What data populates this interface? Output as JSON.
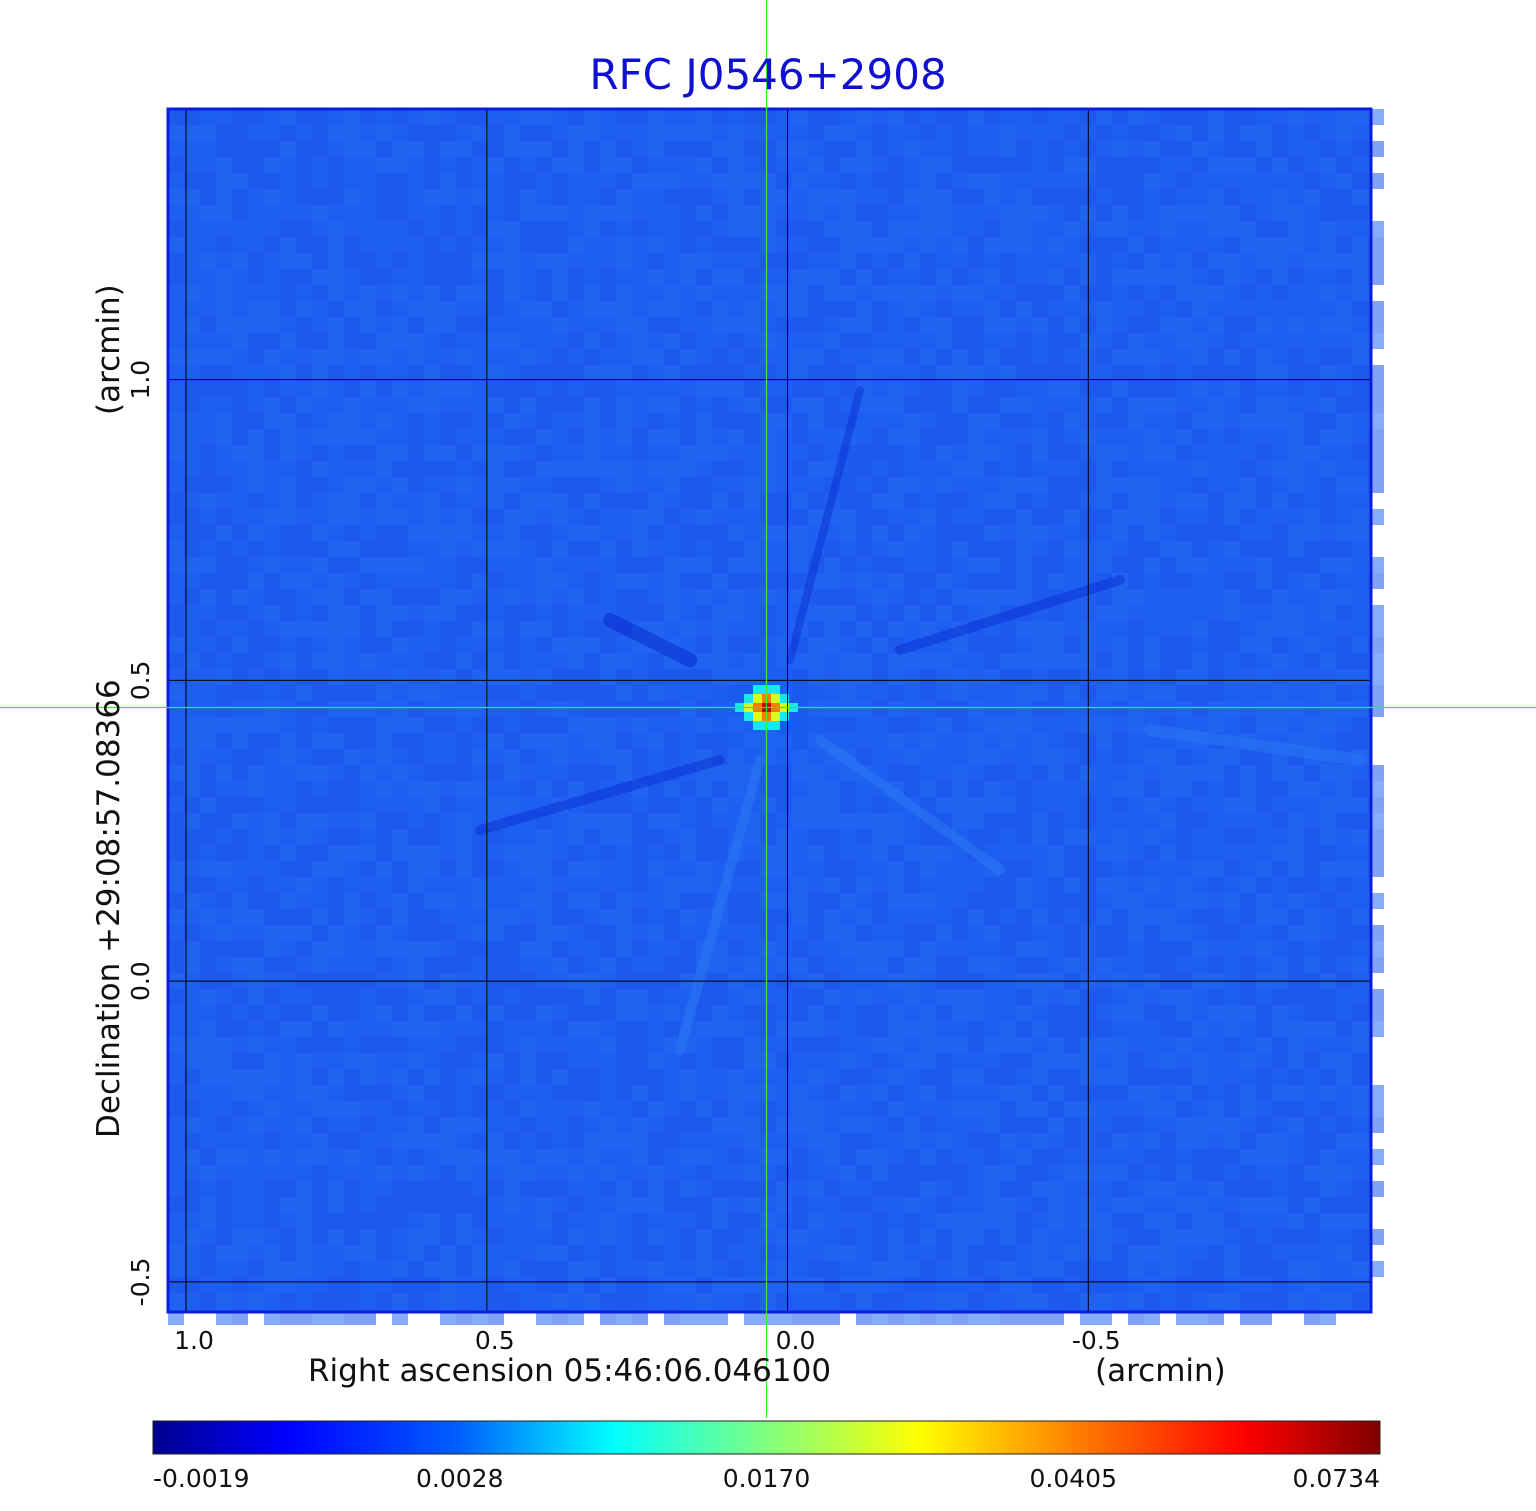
{
  "chart_data": {
    "type": "heatmap",
    "title": "RFC J0546+2908",
    "title_color": "#1010d0",
    "xlabel": "Right ascension  05:46:06.046100",
    "xlabel_unit": "(arcmin)",
    "ylabel": "Declination  +29:08:57.08366",
    "ylabel_unit": "(arcmin)",
    "x_ticks": [
      "1.0",
      "0.5",
      "0.0",
      "-0.5"
    ],
    "x_tick_values": [
      1.0,
      0.5,
      0.0,
      -0.5
    ],
    "y_ticks": [
      "-0.5",
      "0.0",
      "0.5",
      "1.0"
    ],
    "y_tick_values": [
      -0.5,
      0.0,
      0.5,
      1.0
    ],
    "xlim": [
      1.03,
      -0.97
    ],
    "ylim": [
      -0.55,
      1.45
    ],
    "grid": true,
    "crosshair": {
      "x": 0.035,
      "y": 0.455,
      "color": "#33ee33"
    },
    "source_peak": {
      "x": 0.035,
      "y": 0.455,
      "value": 0.0734
    },
    "background_level": 0.0008,
    "colormap": "jet",
    "colorbar": {
      "ticks": [
        "-0.0019",
        "0.0028",
        "0.0170",
        "0.0405",
        "0.0734"
      ],
      "min": -0.0019,
      "max": 0.0734
    }
  }
}
